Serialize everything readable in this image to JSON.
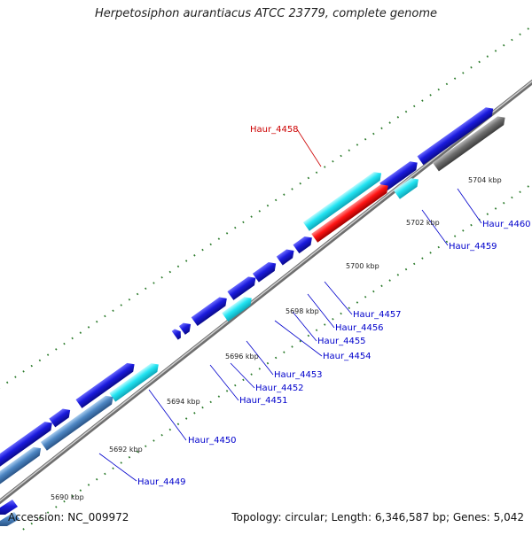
{
  "title": "Herpetosiphon aurantiacus ATCC 23779, complete genome",
  "footer": {
    "accession": "Accession: NC_009972",
    "summary": "Topology: circular; Length: 6,346,587 bp; Genes: 5,042"
  },
  "colors": {
    "background": "#ffffff",
    "backbone": "#9a9a9a",
    "gene_forward": "#1a1add",
    "gene_cyan": "#22e4f2",
    "gene_steel": "#4d86c3",
    "gene_gray": "#6e6e6e",
    "gene_highlight": "#ff1414",
    "label": "#0000cc",
    "label_highlight": "#cc0000",
    "tick": "#2a7a2a"
  },
  "kbp_labels": [
    "5690 kbp",
    "5692 kbp",
    "5694 kbp",
    "5696 kbp",
    "5698 kbp",
    "5700 kbp",
    "5702 kbp",
    "5704 kbp"
  ],
  "gene_labels": [
    {
      "id": "Haur_4449",
      "text": "Haur_4449",
      "highlight": false
    },
    {
      "id": "Haur_4450",
      "text": "Haur_4450",
      "highlight": false
    },
    {
      "id": "Haur_4451",
      "text": "Haur_4451",
      "highlight": false
    },
    {
      "id": "Haur_4452",
      "text": "Haur_4452",
      "highlight": false
    },
    {
      "id": "Haur_4453",
      "text": "Haur_4453",
      "highlight": false
    },
    {
      "id": "Haur_4454",
      "text": "Haur_4454",
      "highlight": false
    },
    {
      "id": "Haur_4455",
      "text": "Haur_4455",
      "highlight": false
    },
    {
      "id": "Haur_4456",
      "text": "Haur_4456",
      "highlight": false
    },
    {
      "id": "Haur_4457",
      "text": "Haur_4457",
      "highlight": false
    },
    {
      "id": "Haur_4458",
      "text": "Haur_4458",
      "highlight": true
    },
    {
      "id": "Haur_4459",
      "text": "Haur_4459",
      "highlight": false
    },
    {
      "id": "Haur_4460",
      "text": "Haur_4460",
      "highlight": false
    }
  ]
}
